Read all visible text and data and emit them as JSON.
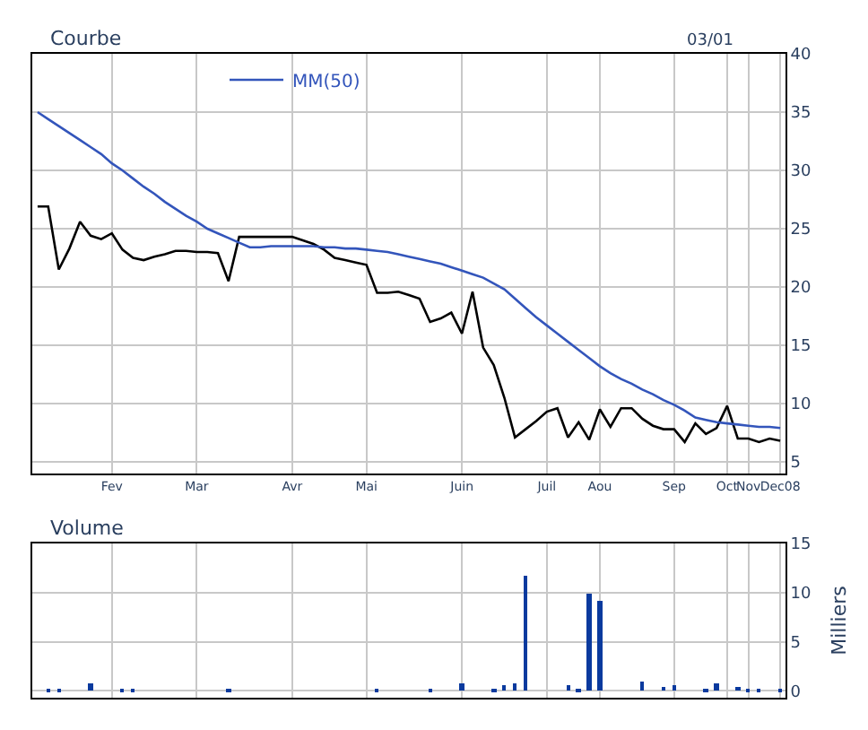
{
  "chart_data": [
    {
      "type": "line",
      "title": "Courbe",
      "annotations": [
        "03/01"
      ],
      "legend": "top left",
      "grid": true,
      "ylim": [
        4,
        40
      ],
      "yticks": [
        5,
        10,
        15,
        20,
        25,
        30,
        35,
        40
      ],
      "categories": [
        null,
        null,
        null,
        null,
        null,
        null,
        null,
        "Fev",
        null,
        null,
        null,
        null,
        null,
        null,
        null,
        "Mar",
        null,
        null,
        null,
        null,
        null,
        null,
        null,
        null,
        "Avr",
        null,
        null,
        null,
        null,
        null,
        null,
        "Mai",
        null,
        null,
        null,
        null,
        null,
        null,
        null,
        null,
        "Juin",
        null,
        null,
        null,
        null,
        null,
        null,
        null,
        "Juil",
        null,
        null,
        null,
        null,
        "Aou",
        null,
        null,
        null,
        null,
        null,
        null,
        "Sep",
        null,
        null,
        null,
        null,
        "Oct",
        null,
        "Nov",
        null,
        null,
        "Dec08"
      ],
      "series": [
        {
          "color": "#000000",
          "values": [
            26.9,
            26.9,
            21.5,
            23.3,
            25.6,
            24.4,
            24.1,
            24.6,
            23.2,
            22.5,
            22.3,
            22.6,
            22.8,
            23.1,
            23.1,
            23.0,
            23.0,
            22.9,
            20.5,
            24.3,
            24.3,
            24.3,
            24.3,
            24.3,
            24.3,
            24.0,
            23.7,
            23.2,
            22.5,
            22.3,
            22.1,
            21.9,
            19.5,
            19.5,
            19.6,
            19.3,
            19.0,
            17.0,
            17.3,
            17.8,
            16.0,
            19.6,
            14.8,
            13.3,
            10.5,
            7.1,
            7.8,
            8.5,
            9.3,
            9.6,
            7.1,
            8.4,
            6.9,
            9.5,
            8.0,
            9.6,
            9.6,
            8.7,
            8.1,
            7.8,
            7.8,
            6.7,
            8.3,
            7.4,
            7.9,
            9.8,
            7.0,
            7.0,
            6.7,
            7.0,
            6.8
          ]
        },
        {
          "name": "MM(50)",
          "color": "#3355bb",
          "values": [
            35,
            34.4,
            33.8,
            33.2,
            32.6,
            32.0,
            31.4,
            30.6,
            30.0,
            29.3,
            28.6,
            28.0,
            27.3,
            26.7,
            26.1,
            25.6,
            25.0,
            24.6,
            24.2,
            23.8,
            23.4,
            23.4,
            23.5,
            23.5,
            23.5,
            23.5,
            23.5,
            23.4,
            23.4,
            23.3,
            23.3,
            23.2,
            23.1,
            23.0,
            22.8,
            22.6,
            22.4,
            22.2,
            22.0,
            21.7,
            21.4,
            21.1,
            20.8,
            20.3,
            19.8,
            19.0,
            18.2,
            17.4,
            16.7,
            16.0,
            15.3,
            14.6,
            13.9,
            13.2,
            12.6,
            12.1,
            11.7,
            11.2,
            10.8,
            10.3,
            9.9,
            9.4,
            8.8,
            8.6,
            8.4,
            8.3,
            8.2,
            8.1,
            8.0,
            8.0,
            7.9
          ]
        }
      ]
    },
    {
      "type": "bar",
      "title": "Volume",
      "ylabel": "Milliers",
      "grid": true,
      "tick_labels": "y",
      "ylim": [
        -0.7,
        15
      ],
      "yticks": [
        0,
        5,
        10,
        15
      ],
      "categories": [
        null,
        null,
        null,
        null,
        null,
        null,
        null,
        null,
        null,
        null,
        null,
        null,
        null,
        null,
        null,
        null,
        null,
        null,
        null,
        null,
        null,
        null,
        null,
        null,
        null,
        null,
        null,
        null,
        null,
        null,
        null,
        null,
        null,
        null,
        null,
        null,
        null,
        null,
        null,
        null,
        null,
        null,
        null,
        null,
        null,
        null,
        null,
        null,
        null,
        null,
        null,
        null,
        null,
        null,
        null,
        null,
        null,
        null,
        null,
        null,
        null,
        null,
        null,
        null,
        null,
        null,
        null,
        null,
        null,
        null,
        null
      ],
      "series": [
        {
          "color": "#0a3a9e",
          "values": [
            0,
            0.3,
            0.3,
            0,
            0,
            0.8,
            0,
            0,
            0.3,
            0.3,
            0,
            0,
            0,
            0,
            0,
            0,
            0,
            0,
            0.2,
            0,
            0,
            0,
            0,
            0,
            0,
            0,
            0,
            0,
            0,
            0,
            0,
            0,
            0.3,
            0,
            0,
            0,
            0,
            0.3,
            0,
            0,
            0.7,
            0,
            0,
            0.3,
            0.6,
            0.8,
            11.8,
            0,
            0,
            0,
            0.6,
            0.3,
            9.8,
            9.2,
            0,
            0,
            0,
            1.0,
            0,
            0.4,
            0.6,
            0,
            0,
            0.3,
            0.7,
            0,
            0.4,
            0.3,
            0.3,
            0,
            0.3
          ]
        }
      ]
    }
  ]
}
